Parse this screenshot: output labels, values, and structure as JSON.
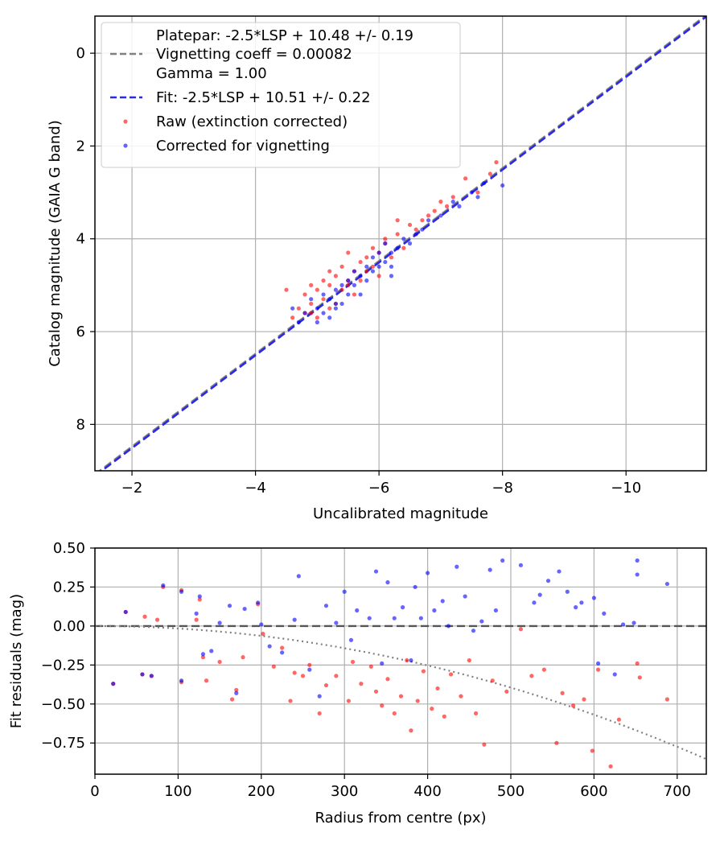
{
  "chart_data": [
    {
      "type": "scatter",
      "xlabel": "Uncalibrated magnitude",
      "ylabel": "Catalog magnitude (GAIA G band)",
      "xlim": [
        -1.4,
        -11.3
      ],
      "ylim": [
        9.0,
        -0.8
      ],
      "x_inverted": true,
      "y_inverted": true,
      "xticks": [
        -2,
        -4,
        -6,
        -8,
        -10
      ],
      "xtick_labels": [
        "−2",
        "−4",
        "−6",
        "−8",
        "−10"
      ],
      "yticks": [
        0,
        2,
        4,
        6,
        8
      ],
      "ytick_labels": [
        "0",
        "2",
        "4",
        "6",
        "8"
      ],
      "grid": true,
      "legend_position": "upper-left",
      "legend": [
        {
          "kind": "line",
          "style": "dashed",
          "color": "#808080",
          "lines": [
            "Platepar: -2.5*LSP + 10.48 +/- 0.19",
            "Vignetting coeff = 0.00082",
            "Gamma = 1.00"
          ]
        },
        {
          "kind": "line",
          "style": "dashed",
          "color": "#2929e6",
          "lines": [
            "Fit: -2.5*LSP + 10.51 +/- 0.22"
          ]
        },
        {
          "kind": "marker",
          "color": "#ff0000",
          "lines": [
            "Raw (extinction corrected)"
          ]
        },
        {
          "kind": "marker",
          "color": "#0000ff",
          "lines": [
            "Corrected for vignetting"
          ]
        }
      ],
      "lines": [
        {
          "name": "Platepar",
          "slope": 1.0,
          "intercept": 10.48,
          "color": "#808080",
          "style": "dashed"
        },
        {
          "name": "Fit",
          "slope": 1.0,
          "intercept": 10.51,
          "color": "#2929e6",
          "style": "dashed"
        }
      ],
      "series": [
        {
          "name": "Raw (extinction corrected)",
          "color": "#ff0000",
          "points": [
            [
              -4.5,
              5.1
            ],
            [
              -4.6,
              5.7
            ],
            [
              -4.7,
              5.5
            ],
            [
              -4.8,
              5.2
            ],
            [
              -4.8,
              5.6
            ],
            [
              -4.9,
              5.0
            ],
            [
              -4.9,
              5.4
            ],
            [
              -5.0,
              5.7
            ],
            [
              -5.0,
              5.1
            ],
            [
              -5.1,
              5.3
            ],
            [
              -5.1,
              4.9
            ],
            [
              -5.2,
              5.5
            ],
            [
              -5.2,
              5.0
            ],
            [
              -5.3,
              4.8
            ],
            [
              -5.3,
              5.4
            ],
            [
              -5.4,
              4.6
            ],
            [
              -5.4,
              5.1
            ],
            [
              -5.5,
              4.3
            ],
            [
              -5.5,
              4.9
            ],
            [
              -5.6,
              4.7
            ],
            [
              -5.6,
              5.2
            ],
            [
              -5.7,
              4.5
            ],
            [
              -5.7,
              4.9
            ],
            [
              -5.8,
              4.4
            ],
            [
              -5.8,
              4.7
            ],
            [
              -5.9,
              4.2
            ],
            [
              -5.9,
              4.6
            ],
            [
              -6.0,
              4.3
            ],
            [
              -6.0,
              4.8
            ],
            [
              -6.1,
              4.1
            ],
            [
              -6.2,
              4.4
            ],
            [
              -6.3,
              3.9
            ],
            [
              -6.4,
              4.2
            ],
            [
              -6.5,
              3.7
            ],
            [
              -6.6,
              3.8
            ],
            [
              -6.7,
              3.6
            ],
            [
              -6.8,
              3.5
            ],
            [
              -6.9,
              3.4
            ],
            [
              -7.0,
              3.2
            ],
            [
              -7.1,
              3.3
            ],
            [
              -7.2,
              3.1
            ],
            [
              -7.4,
              2.7
            ],
            [
              -7.6,
              3.0
            ],
            [
              -7.8,
              2.6
            ],
            [
              -7.9,
              2.35
            ],
            [
              -6.3,
              3.6
            ],
            [
              -5.5,
              5.0
            ],
            [
              -4.9,
              5.6
            ],
            [
              -5.2,
              4.7
            ],
            [
              -6.1,
              4.0
            ]
          ]
        },
        {
          "name": "Corrected for vignetting",
          "color": "#0000ff",
          "points": [
            [
              -4.6,
              5.5
            ],
            [
              -4.7,
              5.8
            ],
            [
              -4.8,
              5.6
            ],
            [
              -4.9,
              5.3
            ],
            [
              -5.0,
              5.8
            ],
            [
              -5.0,
              5.5
            ],
            [
              -5.1,
              5.6
            ],
            [
              -5.1,
              5.2
            ],
            [
              -5.2,
              5.7
            ],
            [
              -5.2,
              5.3
            ],
            [
              -5.3,
              5.5
            ],
            [
              -5.3,
              5.1
            ],
            [
              -5.4,
              5.4
            ],
            [
              -5.4,
              5.0
            ],
            [
              -5.5,
              5.2
            ],
            [
              -5.5,
              4.9
            ],
            [
              -5.6,
              5.0
            ],
            [
              -5.6,
              4.7
            ],
            [
              -5.7,
              5.2
            ],
            [
              -5.7,
              4.8
            ],
            [
              -5.8,
              4.9
            ],
            [
              -5.8,
              4.6
            ],
            [
              -5.9,
              4.4
            ],
            [
              -5.9,
              4.7
            ],
            [
              -6.0,
              4.6
            ],
            [
              -6.0,
              4.3
            ],
            [
              -6.1,
              4.5
            ],
            [
              -6.1,
              4.1
            ],
            [
              -6.2,
              4.3
            ],
            [
              -6.2,
              4.6
            ],
            [
              -6.3,
              4.2
            ],
            [
              -6.4,
              4.0
            ],
            [
              -6.5,
              4.1
            ],
            [
              -6.6,
              3.9
            ],
            [
              -6.7,
              3.8
            ],
            [
              -6.8,
              3.6
            ],
            [
              -7.0,
              3.5
            ],
            [
              -7.2,
              3.2
            ],
            [
              -7.3,
              3.3
            ],
            [
              -7.5,
              3.0
            ],
            [
              -7.6,
              3.1
            ],
            [
              -7.7,
              2.8
            ],
            [
              -8.0,
              2.85
            ],
            [
              -6.2,
              4.8
            ],
            [
              -5.3,
              5.4
            ]
          ]
        }
      ]
    },
    {
      "type": "scatter",
      "xlabel": "Radius from centre (px)",
      "ylabel": "Fit residuals (mag)",
      "xlim": [
        0,
        735
      ],
      "ylim": [
        -0.95,
        0.5
      ],
      "xticks": [
        0,
        100,
        200,
        300,
        400,
        500,
        600,
        700
      ],
      "xtick_labels": [
        "0",
        "100",
        "200",
        "300",
        "400",
        "500",
        "600",
        "700"
      ],
      "yticks": [
        0.5,
        0.25,
        0.0,
        -0.25,
        -0.5,
        -0.75
      ],
      "ytick_labels": [
        "0.50",
        "0.25",
        "0.00",
        "−0.25",
        "−0.50",
        "−0.75"
      ],
      "grid": true,
      "reference_line": {
        "y": 0.0,
        "style": "dashed",
        "color": "#555555"
      },
      "vignetting_curve": {
        "coeff": 0.00082,
        "style": "dotted",
        "color": "#808080"
      },
      "series": [
        {
          "name": "Raw (extinction corrected)",
          "color": "#ff0000",
          "points": [
            [
              22,
              -0.37
            ],
            [
              37,
              0.09
            ],
            [
              57,
              -0.31
            ],
            [
              60,
              0.06
            ],
            [
              68,
              -0.32
            ],
            [
              75,
              0.04
            ],
            [
              82,
              0.25
            ],
            [
              104,
              -0.36
            ],
            [
              104,
              0.23
            ],
            [
              122,
              0.04
            ],
            [
              126,
              0.17
            ],
            [
              130,
              -0.2
            ],
            [
              134,
              -0.35
            ],
            [
              150,
              -0.23
            ],
            [
              165,
              -0.47
            ],
            [
              170,
              -0.41
            ],
            [
              178,
              -0.2
            ],
            [
              196,
              0.14
            ],
            [
              202,
              -0.05
            ],
            [
              215,
              -0.26
            ],
            [
              225,
              -0.14
            ],
            [
              235,
              -0.48
            ],
            [
              240,
              -0.3
            ],
            [
              250,
              -0.32
            ],
            [
              258,
              -0.25
            ],
            [
              270,
              -0.56
            ],
            [
              278,
              -0.38
            ],
            [
              290,
              -0.32
            ],
            [
              305,
              -0.48
            ],
            [
              310,
              -0.23
            ],
            [
              320,
              -0.37
            ],
            [
              332,
              -0.26
            ],
            [
              338,
              -0.42
            ],
            [
              345,
              -0.51
            ],
            [
              352,
              -0.34
            ],
            [
              360,
              -0.56
            ],
            [
              368,
              -0.45
            ],
            [
              375,
              -0.22
            ],
            [
              380,
              -0.67
            ],
            [
              388,
              -0.48
            ],
            [
              395,
              -0.29
            ],
            [
              405,
              -0.53
            ],
            [
              412,
              -0.4
            ],
            [
              420,
              -0.58
            ],
            [
              428,
              -0.31
            ],
            [
              440,
              -0.45
            ],
            [
              450,
              -0.22
            ],
            [
              458,
              -0.56
            ],
            [
              468,
              -0.76
            ],
            [
              478,
              -0.35
            ],
            [
              495,
              -0.42
            ],
            [
              512,
              -0.02
            ],
            [
              525,
              -0.32
            ],
            [
              540,
              -0.28
            ],
            [
              555,
              -0.75
            ],
            [
              562,
              -0.43
            ],
            [
              575,
              -0.51
            ],
            [
              588,
              -0.47
            ],
            [
              598,
              -0.8
            ],
            [
              605,
              -0.28
            ],
            [
              620,
              -0.9
            ],
            [
              630,
              -0.6
            ],
            [
              652,
              -0.24
            ],
            [
              655,
              -0.33
            ],
            [
              688,
              -0.47
            ]
          ]
        },
        {
          "name": "Corrected for vignetting",
          "color": "#0000ff",
          "points": [
            [
              22,
              -0.37
            ],
            [
              37,
              0.09
            ],
            [
              57,
              -0.31
            ],
            [
              68,
              -0.32
            ],
            [
              82,
              0.26
            ],
            [
              104,
              0.22
            ],
            [
              104,
              -0.35
            ],
            [
              122,
              0.08
            ],
            [
              126,
              0.19
            ],
            [
              130,
              -0.18
            ],
            [
              140,
              -0.16
            ],
            [
              150,
              0.02
            ],
            [
              162,
              0.13
            ],
            [
              170,
              -0.43
            ],
            [
              180,
              0.11
            ],
            [
              196,
              0.15
            ],
            [
              200,
              0.01
            ],
            [
              210,
              -0.13
            ],
            [
              225,
              -0.17
            ],
            [
              240,
              0.04
            ],
            [
              245,
              0.32
            ],
            [
              258,
              -0.28
            ],
            [
              270,
              -0.45
            ],
            [
              278,
              0.13
            ],
            [
              290,
              0.02
            ],
            [
              300,
              0.22
            ],
            [
              308,
              -0.09
            ],
            [
              315,
              0.1
            ],
            [
              330,
              0.05
            ],
            [
              338,
              0.35
            ],
            [
              345,
              -0.24
            ],
            [
              352,
              0.28
            ],
            [
              360,
              0.05
            ],
            [
              370,
              0.12
            ],
            [
              380,
              -0.22
            ],
            [
              385,
              0.25
            ],
            [
              392,
              0.05
            ],
            [
              400,
              0.34
            ],
            [
              408,
              0.1
            ],
            [
              418,
              0.16
            ],
            [
              425,
              0.0
            ],
            [
              435,
              0.38
            ],
            [
              445,
              0.19
            ],
            [
              455,
              -0.03
            ],
            [
              465,
              0.03
            ],
            [
              475,
              0.36
            ],
            [
              482,
              0.1
            ],
            [
              490,
              0.42
            ],
            [
              512,
              0.39
            ],
            [
              528,
              0.15
            ],
            [
              535,
              0.2
            ],
            [
              545,
              0.29
            ],
            [
              558,
              0.35
            ],
            [
              568,
              0.22
            ],
            [
              578,
              0.12
            ],
            [
              585,
              0.15
            ],
            [
              600,
              0.18
            ],
            [
              605,
              -0.24
            ],
            [
              612,
              0.08
            ],
            [
              625,
              -0.31
            ],
            [
              635,
              0.01
            ],
            [
              648,
              0.02
            ],
            [
              652,
              0.33
            ],
            [
              652,
              0.42
            ],
            [
              688,
              0.27
            ]
          ]
        }
      ]
    }
  ]
}
